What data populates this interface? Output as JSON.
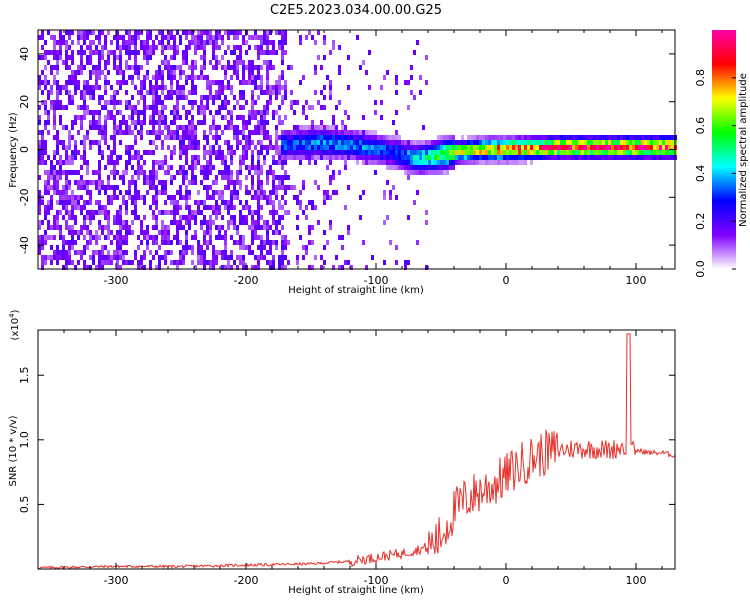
{
  "title": "C2E5.2023.034.00.00.G25",
  "colors": {
    "signal": "#e8302a",
    "axis": "#000000",
    "background": "#ffffff"
  },
  "chart_data": [
    {
      "type": "heatmap",
      "xlabel": "Height of straight line (km)",
      "ylabel": "Frequency (Hz)",
      "xlim": [
        -360,
        130
      ],
      "ylim": [
        -50,
        50
      ],
      "xticks": [
        -300,
        -200,
        -100,
        0,
        100
      ],
      "yticks": [
        -40,
        -20,
        0,
        20,
        40
      ],
      "colorbar": {
        "label": "Normalized spectral amplitude",
        "range": [
          0,
          1
        ],
        "ticks": [
          "0.0",
          "0.2",
          "0.4",
          "0.6",
          "0.8"
        ],
        "colormap": [
          "#ffffff",
          "#7f00ff",
          "#0000ff",
          "#00ffff",
          "#00ff00",
          "#ffff00",
          "#ff0000",
          "#ff00aa"
        ]
      },
      "ridge": {
        "description_points_x": [
          -170,
          -150,
          -120,
          -90,
          -70,
          -55,
          -40,
          -20,
          0,
          40,
          90,
          130
        ],
        "frequency_hz": [
          3,
          4,
          3,
          0,
          -3,
          -2,
          0,
          1,
          1,
          2,
          2,
          2
        ],
        "peak_amplitude": [
          0.35,
          0.4,
          0.38,
          0.35,
          0.45,
          0.6,
          0.7,
          0.8,
          0.9,
          0.95,
          0.95,
          0.95
        ]
      }
    },
    {
      "type": "line",
      "xlabel": "Height of straight line (km)",
      "ylabel": "SNR (10 * v/v)",
      "scale_label": "(x10^4)",
      "scale_base": "(x10",
      "scale_exp": "4",
      "scale_close": ")",
      "xlim": [
        -360,
        130
      ],
      "ylim": [
        0,
        1.85
      ],
      "xticks": [
        -300,
        -200,
        -100,
        0,
        100
      ],
      "yticks": [
        "0.5",
        "1.0",
        "1.5"
      ],
      "series": [
        {
          "color": "#e8302a",
          "x": [
            -360,
            -300,
            -250,
            -200,
            -150,
            -120,
            -100,
            -80,
            -60,
            -50,
            -40,
            -30,
            -20,
            -10,
            0,
            10,
            20,
            30,
            40,
            50,
            60,
            70,
            80,
            90,
            95,
            100,
            110,
            120,
            130
          ],
          "y": [
            0.01,
            0.02,
            0.02,
            0.03,
            0.04,
            0.06,
            0.09,
            0.12,
            0.17,
            0.25,
            0.45,
            0.55,
            0.6,
            0.65,
            0.72,
            0.8,
            0.86,
            0.9,
            0.92,
            0.93,
            0.93,
            0.93,
            0.92,
            0.95,
            0.9,
            0.92,
            0.9,
            0.9,
            0.88
          ]
        }
      ]
    }
  ]
}
